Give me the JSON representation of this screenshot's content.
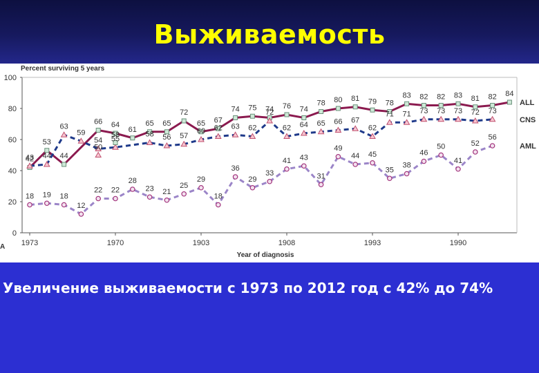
{
  "slide": {
    "title": "Выживаемость",
    "caption": "Увеличение выживаемости с 1973 по 2012 год с 42% до 74%"
  },
  "chart_data": {
    "type": "line",
    "ylabel": "Percent surviving 5 years",
    "xlabel": "Year of diagnosis",
    "corner_label": "A",
    "ylim": [
      0,
      100
    ],
    "yticks": [
      "0",
      "20",
      "40",
      "60",
      "80",
      "100"
    ],
    "xtick_labels": [
      "1973",
      "1970",
      "1903",
      "1908",
      "1993",
      "1990"
    ],
    "grid": false,
    "legend_placement": "right",
    "series": [
      {
        "name": "ALL",
        "color": "#8b1a4f",
        "style": "solid",
        "marker": "square",
        "values": [
          42,
          53,
          44,
          null,
          66,
          64,
          61,
          65,
          65,
          72,
          65,
          67,
          74,
          75,
          74,
          76,
          74,
          78,
          80,
          81,
          79,
          78,
          83,
          82,
          82,
          83,
          81,
          82,
          84
        ],
        "labels": [
          "42",
          "53",
          "44",
          "",
          "66",
          "64",
          "61",
          "65",
          "65",
          "72",
          "65",
          "67",
          "74",
          "75",
          "74",
          "76",
          "74",
          "78",
          "80",
          "81",
          "79",
          "78",
          "83",
          "82",
          "82",
          "83",
          "81",
          "82",
          "84"
        ]
      },
      {
        "name": "CNS",
        "color": "#1f3a8a",
        "style": "dashed",
        "marker": "triangle",
        "values": [
          43,
          44,
          63,
          59,
          54,
          55,
          null,
          58,
          56,
          57,
          60,
          62,
          63,
          62,
          72,
          62,
          64,
          65,
          66,
          67,
          62,
          71,
          71,
          73,
          73,
          73,
          72,
          73,
          null
        ],
        "labels": [
          "43",
          "44",
          "63",
          "59",
          "54",
          "55",
          "",
          "58",
          "56",
          "57",
          "60",
          "62",
          "63",
          "62",
          "72",
          "62",
          "64",
          "65",
          "66",
          "67",
          "62",
          "71",
          "71",
          "73",
          "73",
          "73",
          "72",
          "73",
          ""
        ]
      },
      {
        "name": "AML",
        "color": "#9b85c8",
        "style": "dashed",
        "marker": "circle",
        "values": [
          18,
          19,
          18,
          12,
          22,
          22,
          28,
          23,
          21,
          25,
          29,
          18,
          36,
          29,
          33,
          41,
          43,
          31,
          49,
          44,
          45,
          35,
          38,
          46,
          50,
          41,
          52,
          56,
          null
        ],
        "labels": [
          "18",
          "19",
          "18",
          "12",
          "22",
          "22",
          "28",
          "23",
          "21",
          "25",
          "29",
          "18",
          "36",
          "29",
          "33",
          "41",
          "43",
          "31",
          "49",
          "44",
          "45",
          "35",
          "38",
          "46",
          "50",
          "41",
          "52",
          "56",
          ""
        ]
      }
    ],
    "extra_points": [
      {
        "series": "CNS",
        "index": 4,
        "value": 50,
        "label": "50"
      },
      {
        "series": "ALL",
        "index": 5,
        "value": 58,
        "label": "58"
      }
    ]
  }
}
